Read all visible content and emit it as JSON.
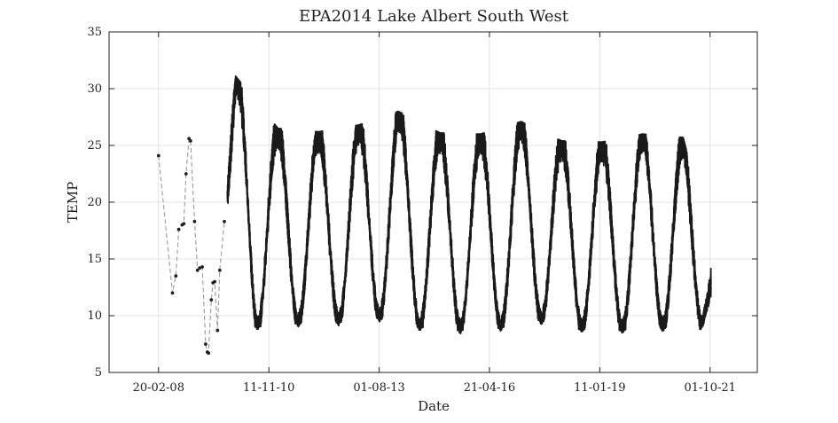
{
  "chart_data": {
    "type": "line",
    "title": "EPA2014 Lake Albert South West",
    "xlabel": "Date",
    "ylabel": "TEMP",
    "x_axis_type": "date",
    "xlim": [
      "2006-12-01",
      "2022-12-01"
    ],
    "ylim": [
      5,
      35
    ],
    "xticks": [
      {
        "date": "2008-02-20",
        "label": "20-02-08"
      },
      {
        "date": "2010-11-11",
        "label": "11-11-10"
      },
      {
        "date": "2013-08-01",
        "label": "01-08-13"
      },
      {
        "date": "2016-04-21",
        "label": "21-04-16"
      },
      {
        "date": "2019-01-11",
        "label": "11-01-19"
      },
      {
        "date": "2021-10-01",
        "label": "01-10-21"
      }
    ],
    "yticks": [
      5,
      10,
      15,
      20,
      25,
      30,
      35
    ],
    "grid": true,
    "legend": "none",
    "series": [
      {
        "style": "dashed-gray-with-black-markers",
        "color": "#9a9a9a",
        "marker_color": "#222222",
        "points": [
          [
            "2008-02-20",
            24.1
          ],
          [
            "2008-06-25",
            12.0
          ],
          [
            "2008-07-25",
            13.5
          ],
          [
            "2008-08-20",
            17.6
          ],
          [
            "2008-09-20",
            18.0
          ],
          [
            "2008-10-05",
            18.1
          ],
          [
            "2008-10-25",
            22.5
          ],
          [
            "2008-11-20",
            25.6
          ],
          [
            "2008-12-05",
            25.4
          ],
          [
            "2009-01-10",
            18.3
          ],
          [
            "2009-02-05",
            14.0
          ],
          [
            "2009-02-25",
            14.2
          ],
          [
            "2009-03-20",
            14.3
          ],
          [
            "2009-04-20",
            7.5
          ],
          [
            "2009-05-05",
            6.8
          ],
          [
            "2009-05-15",
            6.7
          ],
          [
            "2009-06-10",
            11.4
          ],
          [
            "2009-06-25",
            12.9
          ],
          [
            "2009-07-10",
            13.0
          ],
          [
            "2009-08-05",
            8.7
          ],
          [
            "2009-08-25",
            14.0
          ],
          [
            "2009-10-05",
            18.3
          ]
        ]
      },
      {
        "style": "dense-continuous-logger",
        "color": "#1a1a1a",
        "fill_color": "#9a9a9a",
        "start": "2009-11-01",
        "end": "2021-10-10",
        "period_days": 365.25,
        "warm_peak_date": "2000-02-01",
        "seasonal_max": [
          [
            "2009-11-01",
            25.0
          ],
          [
            "2010-01-15",
            31.1
          ],
          [
            "2011-02-01",
            26.5
          ],
          [
            "2012-02-01",
            26.2
          ],
          [
            "2013-02-01",
            26.8
          ],
          [
            "2014-01-20",
            28.0
          ],
          [
            "2015-02-01",
            26.1
          ],
          [
            "2016-02-01",
            26.0
          ],
          [
            "2017-02-01",
            27.1
          ],
          [
            "2018-02-01",
            25.4
          ],
          [
            "2019-02-01",
            25.3
          ],
          [
            "2020-02-01",
            26.0
          ],
          [
            "2021-02-01",
            25.7
          ],
          [
            "2021-10-10",
            16.3
          ]
        ],
        "seasonal_min": [
          [
            "2009-11-01",
            16.0
          ],
          [
            "2010-07-10",
            9.0
          ],
          [
            "2011-07-10",
            9.3
          ],
          [
            "2012-07-10",
            9.4
          ],
          [
            "2013-07-10",
            9.8
          ],
          [
            "2014-07-10",
            9.0
          ],
          [
            "2015-07-10",
            8.7
          ],
          [
            "2016-07-10",
            8.9
          ],
          [
            "2017-07-10",
            9.6
          ],
          [
            "2018-07-10",
            8.8
          ],
          [
            "2019-07-10",
            8.7
          ],
          [
            "2020-07-10",
            8.9
          ],
          [
            "2021-07-10",
            8.8
          ],
          [
            "2021-10-10",
            11.5
          ]
        ],
        "daily_swing_degrees": 2.5
      }
    ]
  }
}
